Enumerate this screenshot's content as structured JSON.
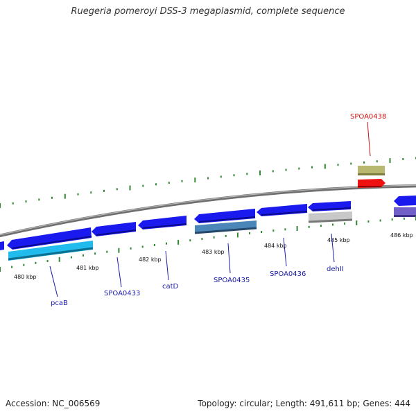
{
  "title": "Ruegeria pomeroyi DSS-3 megaplasmid, complete sequence",
  "footer": {
    "accession": "Accession: NC_006569",
    "summary": "Topology: circular; Length: 491,611 bp; Genes: 444"
  },
  "ticks": [
    "480 kbp",
    "481 kbp",
    "482 kbp",
    "483 kbp",
    "484 kbp",
    "485 kbp",
    "486 kbp"
  ],
  "gene_labels": [
    "pcaB",
    "SPOA0433",
    "catD",
    "SPOA0435",
    "SPOA0436",
    "dehII",
    "SPOA0438"
  ],
  "colors": {
    "backbone": "#8a8a8a",
    "gene_blue": "#1a1aee",
    "gene_cyan": "#22bbee",
    "gene_steel": "#4a86b8",
    "gene_grey": "#c8c8c8",
    "gene_olive": "#b8b870",
    "gene_red": "#ee1111",
    "gene_purple": "#7060c8",
    "tick_green": "#338833",
    "label_blue": "#1a1aaa",
    "label_red": "#cc1111"
  }
}
